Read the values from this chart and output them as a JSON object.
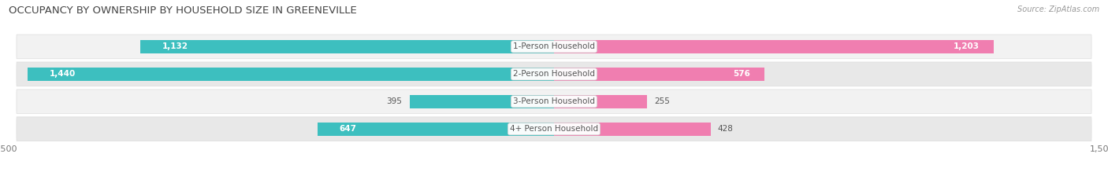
{
  "title": "OCCUPANCY BY OWNERSHIP BY HOUSEHOLD SIZE IN GREENEVILLE",
  "source": "Source: ZipAtlas.com",
  "categories": [
    "1-Person Household",
    "2-Person Household",
    "3-Person Household",
    "4+ Person Household"
  ],
  "owner_values": [
    1132,
    1440,
    395,
    647
  ],
  "renter_values": [
    1203,
    576,
    255,
    428
  ],
  "max_scale": 1500,
  "owner_color": "#3DBFBF",
  "renter_color": "#F07EB0",
  "row_bg_color_odd": "#F2F2F2",
  "row_bg_color_even": "#E8E8E8",
  "title_fontsize": 9.5,
  "label_fontsize": 7.5,
  "value_fontsize": 7.5,
  "tick_fontsize": 8,
  "legend_fontsize": 8,
  "bar_height": 0.48,
  "figsize": [
    14.06,
    2.33
  ],
  "dpi": 100
}
